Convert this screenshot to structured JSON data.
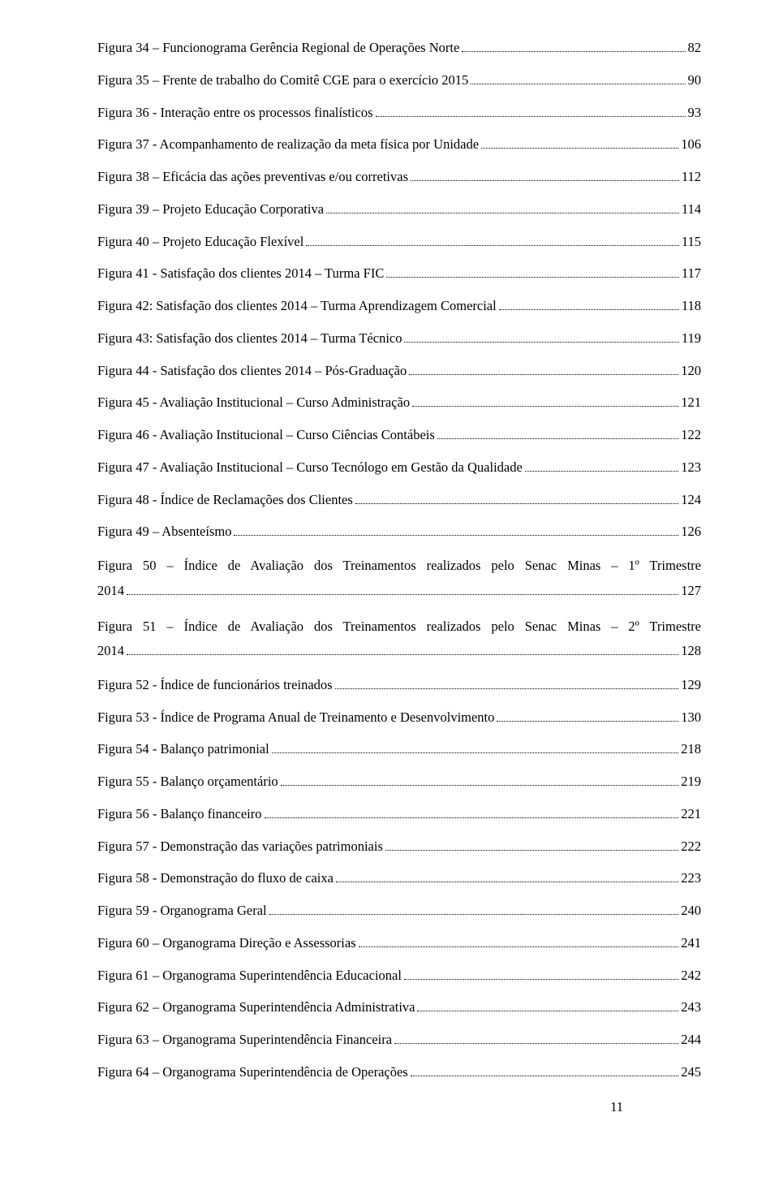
{
  "pageNumber": "11",
  "entries": [
    {
      "label": "Figura 34 – Funcionograma Gerência Regional de Operações Norte",
      "page": "82"
    },
    {
      "label": "Figura 35 – Frente de trabalho do Comitê CGE para o exercício 2015",
      "page": "90"
    },
    {
      "label": "Figura 36 - Interação entre os processos finalísticos",
      "page": "93"
    },
    {
      "label": "Figura 37 - Acompanhamento de realização da meta física por Unidade",
      "page": "106"
    },
    {
      "label": "Figura 38 – Eficácia das ações preventivas e/ou corretivas",
      "page": "112"
    },
    {
      "label": "Figura 39 – Projeto Educação Corporativa",
      "page": "114"
    },
    {
      "label": "Figura 40 – Projeto Educação Flexível",
      "page": "115"
    },
    {
      "label": "Figura 41 - Satisfação dos clientes 2014 – Turma FIC",
      "page": "117"
    },
    {
      "label": "Figura 42: Satisfação dos clientes 2014 – Turma Aprendizagem Comercial",
      "page": "118"
    },
    {
      "label": "Figura 43: Satisfação dos clientes 2014 – Turma Técnico",
      "page": "119"
    },
    {
      "label": "Figura 44 - Satisfação dos clientes 2014 – Pós-Graduação",
      "page": "120"
    },
    {
      "label": "Figura 45 - Avaliação Institucional – Curso Administração",
      "page": "121"
    },
    {
      "label": "Figura 46 - Avaliação Institucional – Curso Ciências Contábeis",
      "page": "122"
    },
    {
      "label": "Figura 47 - Avaliação Institucional – Curso Tecnólogo em Gestão da Qualidade",
      "page": "123"
    },
    {
      "label": "Figura 48 - Índice de Reclamações dos Clientes",
      "page": "124"
    },
    {
      "label": "Figura 49 – Absenteísmo",
      "page": "126"
    },
    {
      "multiline": true,
      "line1": "Figura 50 – Índice de Avaliação dos Treinamentos realizados pelo Senac Minas – 1º Trimestre",
      "line2": "2014",
      "page": "127"
    },
    {
      "multiline": true,
      "line1": "Figura 51 – Índice de Avaliação dos Treinamentos realizados pelo Senac Minas – 2º Trimestre",
      "line2": "2014",
      "page": "128"
    },
    {
      "label": "Figura 52 - Índice de funcionários treinados",
      "page": "129"
    },
    {
      "label": "Figura 53 - Índice de Programa Anual de Treinamento e Desenvolvimento",
      "page": "130"
    },
    {
      "label": "Figura 54 - Balanço patrimonial",
      "page": "218"
    },
    {
      "label": "Figura 55 - Balanço orçamentário",
      "page": "219"
    },
    {
      "label": "Figura 56 - Balanço financeiro",
      "page": "221"
    },
    {
      "label": "Figura 57 - Demonstração das variações patrimoniais",
      "page": "222"
    },
    {
      "label": "Figura 58 - Demonstração do fluxo de caixa",
      "page": "223"
    },
    {
      "label": "Figura 59 - Organograma Geral",
      "page": "240"
    },
    {
      "label": "Figura 60 – Organograma Direção e Assessorias",
      "page": "241"
    },
    {
      "label": "Figura 61 – Organograma Superintendência Educacional",
      "page": "242"
    },
    {
      "label": "Figura 62 – Organograma Superintendência Administrativa",
      "page": "243"
    },
    {
      "label": "Figura 63 – Organograma Superintendência Financeira",
      "page": "244"
    },
    {
      "label": "Figura 64 – Organograma Superintendência de Operações",
      "page": "245"
    }
  ]
}
